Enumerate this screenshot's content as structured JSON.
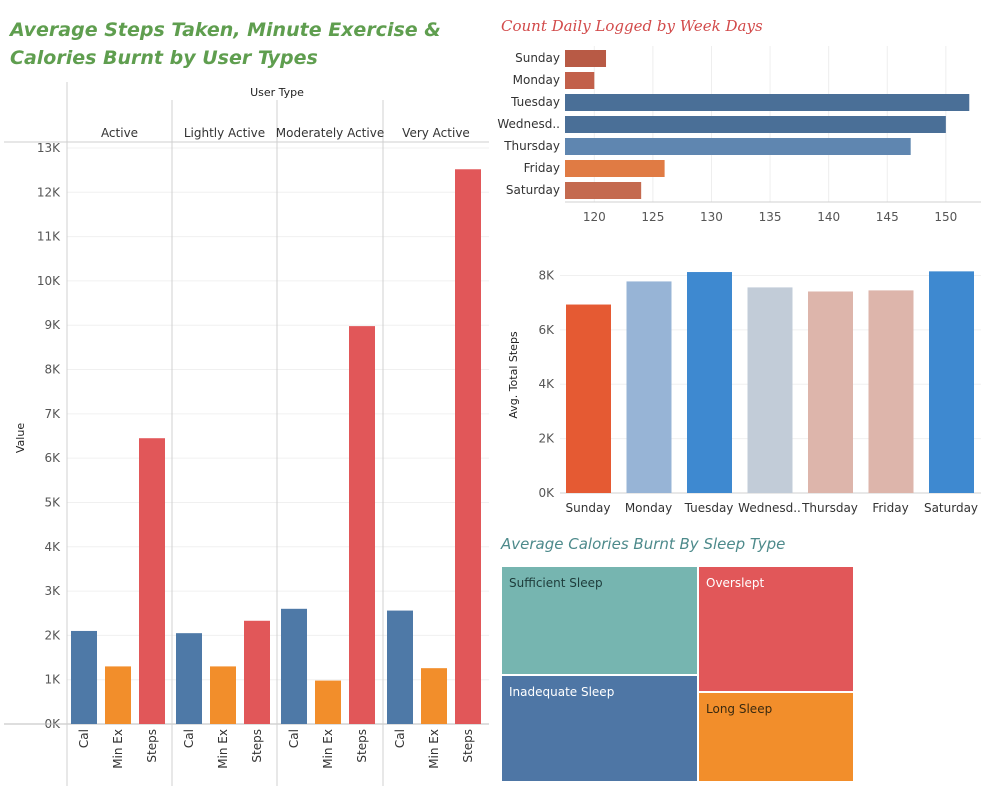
{
  "main_title": "Average Steps Taken, Minute Exercise & Calories Burnt by User Types",
  "colors": {
    "Cal": "#4e79a7",
    "MinEx": "#f28e2b",
    "Steps": "#e15759",
    "title_green": "#5f9e4f",
    "title_red": "#d24a4a"
  },
  "chart_data": [
    {
      "id": "user_type_chart",
      "type": "bar",
      "title": "Average Steps Taken, Minute Exercise & Calories Burnt by User Types",
      "column_header": "User Type",
      "ylabel": "Value",
      "ylim": [
        0,
        13000
      ],
      "y_ticks": [
        "0K",
        "1K",
        "2K",
        "3K",
        "4K",
        "5K",
        "6K",
        "7K",
        "8K",
        "9K",
        "10K",
        "11K",
        "12K",
        "13K"
      ],
      "measures": [
        "Cal",
        "Min Ex",
        "Steps"
      ],
      "groups": [
        {
          "name": "Active",
          "values": [
            2100,
            1300,
            6450
          ]
        },
        {
          "name": "Lightly Active",
          "values": [
            2050,
            1300,
            2330
          ]
        },
        {
          "name": "Moderately Active",
          "values": [
            2600,
            980,
            8980
          ]
        },
        {
          "name": "Very Active",
          "values": [
            2560,
            1260,
            12520
          ]
        }
      ]
    },
    {
      "id": "weekday_count_chart",
      "type": "bar",
      "orientation": "horizontal",
      "title": "Count Daily Logged by Week Days",
      "categories": [
        "Sunday",
        "Monday",
        "Tuesday",
        "Wednesd..",
        "Thursday",
        "Friday",
        "Saturday"
      ],
      "values": [
        121,
        120,
        152,
        150,
        147,
        126,
        124
      ],
      "colors": [
        "#b85a45",
        "#c2604a",
        "#4a6f97",
        "#4a6f97",
        "#5f86b0",
        "#e07b44",
        "#c46a4f"
      ],
      "xlim": [
        117.5,
        153
      ],
      "x_ticks": [
        "120",
        "125",
        "130",
        "135",
        "140",
        "145",
        "150"
      ]
    },
    {
      "id": "weekday_steps_chart",
      "type": "bar",
      "title": "",
      "ylabel": "Avg. Total Steps",
      "categories": [
        "Sunday",
        "Monday",
        "Tuesday",
        "Wednesd..",
        "Thursday",
        "Friday",
        "Saturday"
      ],
      "values": [
        6930,
        7780,
        8125,
        7560,
        7410,
        7450,
        8150
      ],
      "colors": [
        "#e55a33",
        "#97b4d6",
        "#3e89d0",
        "#c2ccd8",
        "#ddb5ab",
        "#ddb5ab",
        "#3e89d0"
      ],
      "ylim": [
        0,
        8200
      ],
      "y_ticks": [
        "0K",
        "2K",
        "4K",
        "6K",
        "8K"
      ]
    },
    {
      "id": "sleep_treemap",
      "type": "treemap",
      "title": "Average Calories Burnt By Sleep Type",
      "items": [
        {
          "label": "Sufficient Sleep",
          "color": "#76b5b0"
        },
        {
          "label": "Inadequate Sleep",
          "color": "#4e76a5"
        },
        {
          "label": "Overslept",
          "color": "#e15759"
        },
        {
          "label": "Long Sleep",
          "color": "#f28e2b"
        }
      ]
    }
  ]
}
